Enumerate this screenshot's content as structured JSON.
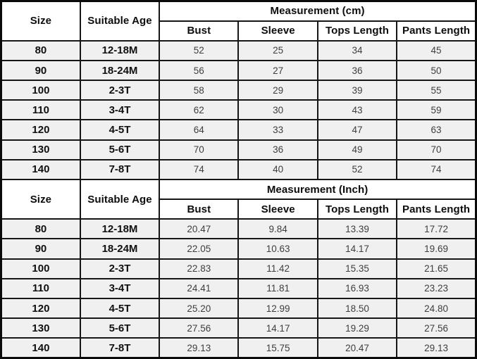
{
  "chart_data": [
    {
      "type": "table",
      "title": "Measurement (cm)",
      "columns": [
        "Size",
        "Suitable Age",
        "Bust",
        "Sleeve",
        "Tops Length",
        "Pants Length"
      ],
      "rows": [
        [
          "80",
          "12-18M",
          "52",
          "25",
          "34",
          "45"
        ],
        [
          "90",
          "18-24M",
          "56",
          "27",
          "36",
          "50"
        ],
        [
          "100",
          "2-3T",
          "58",
          "29",
          "39",
          "55"
        ],
        [
          "110",
          "3-4T",
          "62",
          "30",
          "43",
          "59"
        ],
        [
          "120",
          "4-5T",
          "64",
          "33",
          "47",
          "63"
        ],
        [
          "130",
          "5-6T",
          "70",
          "36",
          "49",
          "70"
        ],
        [
          "140",
          "7-8T",
          "74",
          "40",
          "52",
          "74"
        ]
      ]
    },
    {
      "type": "table",
      "title": "Measurement (Inch)",
      "columns": [
        "Size",
        "Suitable Age",
        "Bust",
        "Sleeve",
        "Tops Length",
        "Pants Length"
      ],
      "rows": [
        [
          "80",
          "12-18M",
          "20.47",
          "9.84",
          "13.39",
          "17.72"
        ],
        [
          "90",
          "18-24M",
          "22.05",
          "10.63",
          "14.17",
          "19.69"
        ],
        [
          "100",
          "2-3T",
          "22.83",
          "11.42",
          "15.35",
          "21.65"
        ],
        [
          "110",
          "3-4T",
          "24.41",
          "11.81",
          "16.93",
          "23.23"
        ],
        [
          "120",
          "4-5T",
          "25.20",
          "12.99",
          "18.50",
          "24.80"
        ],
        [
          "130",
          "5-6T",
          "27.56",
          "14.17",
          "19.29",
          "27.56"
        ],
        [
          "140",
          "7-8T",
          "29.13",
          "15.75",
          "20.47",
          "29.13"
        ]
      ]
    }
  ],
  "colors": {
    "header_bg": "#ffffff",
    "row_bg": "#f0f0f0",
    "border": "#161616",
    "header_text": "#0d0d0d",
    "value_text": "#3e3e3e"
  }
}
